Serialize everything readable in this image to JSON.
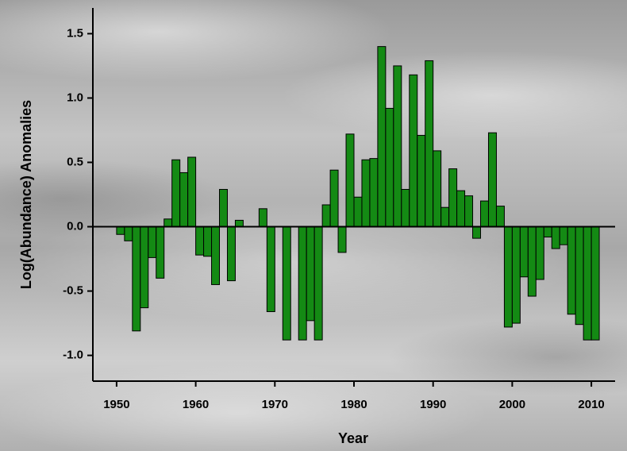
{
  "chart_data": {
    "type": "bar",
    "x_label": "Year",
    "y_label": "Log(Abundance) Anomalies",
    "x": [
      1950,
      1951,
      1952,
      1953,
      1954,
      1955,
      1956,
      1957,
      1958,
      1959,
      1960,
      1961,
      1962,
      1963,
      1964,
      1965,
      1966,
      1967,
      1968,
      1969,
      1970,
      1971,
      1972,
      1973,
      1974,
      1975,
      1976,
      1977,
      1978,
      1979,
      1980,
      1981,
      1982,
      1983,
      1984,
      1985,
      1986,
      1987,
      1988,
      1989,
      1990,
      1991,
      1992,
      1993,
      1994,
      1995,
      1996,
      1997,
      1998,
      1999,
      2000,
      2001,
      2002,
      2003,
      2004,
      2005,
      2006,
      2007,
      2008,
      2009,
      2010
    ],
    "values": [
      -0.06,
      -0.11,
      -0.81,
      -0.63,
      -0.24,
      -0.4,
      0.06,
      0.52,
      0.42,
      0.54,
      -0.22,
      -0.23,
      -0.45,
      0.29,
      -0.42,
      0.05,
      0,
      0,
      0.14,
      -0.66,
      0,
      -0.88,
      0,
      -0.88,
      -0.73,
      -0.88,
      0.17,
      0.44,
      -0.2,
      0.72,
      0.23,
      0.52,
      0.53,
      1.4,
      0.92,
      1.25,
      0.29,
      1.18,
      0.71,
      1.29,
      0.59,
      0.15,
      0.45,
      0.28,
      0.24,
      -0.09,
      0.2,
      0.73,
      0.16,
      -0.78,
      -0.75,
      -0.39,
      -0.54,
      -0.41,
      -0.08,
      -0.17,
      -0.14,
      -0.68,
      -0.76,
      -0.88,
      -0.88
    ],
    "color": "#148a14",
    "xlim": [
      1947,
      2013
    ],
    "xticks": [
      1950,
      1960,
      1970,
      1980,
      1990,
      2000,
      2010
    ],
    "ylim": [
      -1.2,
      1.7
    ],
    "yticks": [
      {
        "value": -1,
        "label": "-1.0"
      },
      {
        "value": -0.5,
        "label": "-0.5"
      },
      {
        "value": 0,
        "label": "0.0"
      },
      {
        "value": 0.5,
        "label": "0.5"
      },
      {
        "value": 1,
        "label": "1.0"
      },
      {
        "value": 1.5,
        "label": "1.5"
      }
    ],
    "grid": false
  }
}
